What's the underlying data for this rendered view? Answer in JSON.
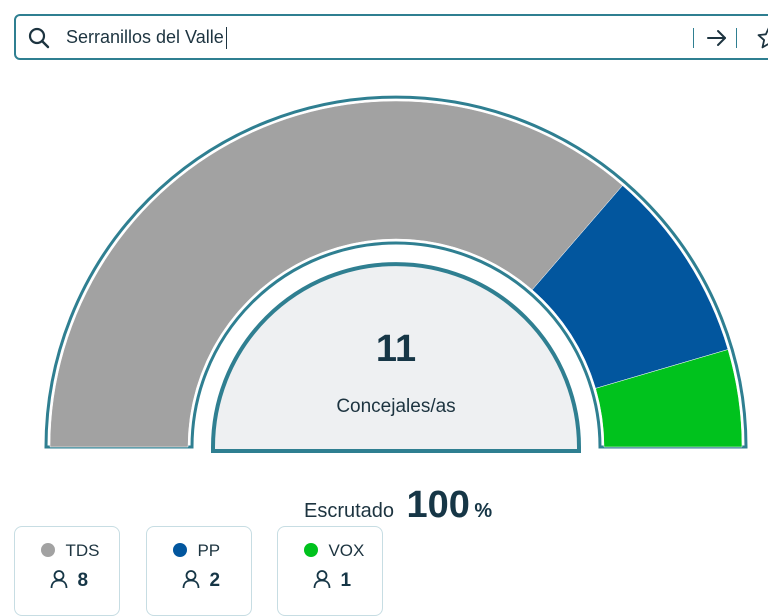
{
  "search": {
    "value": "Serranillos del Valle",
    "icon": "search-icon",
    "go_icon": "arrow-right-icon",
    "favorite_icon": "star-icon"
  },
  "summary": {
    "total_seats": "11",
    "seats_label": "Concejales/as",
    "scrutiny_label": "Escrutado",
    "scrutiny_value": "100",
    "scrutiny_unit": "%"
  },
  "parties": [
    {
      "name": "TDS",
      "seats": "8",
      "color": "#a2a2a2"
    },
    {
      "name": "PP",
      "seats": "2",
      "color": "#02569e"
    },
    {
      "name": "VOX",
      "seats": "1",
      "color": "#00c21d"
    }
  ],
  "colors": {
    "accent": "#2f7f91",
    "inner": "#eef0f2"
  }
}
